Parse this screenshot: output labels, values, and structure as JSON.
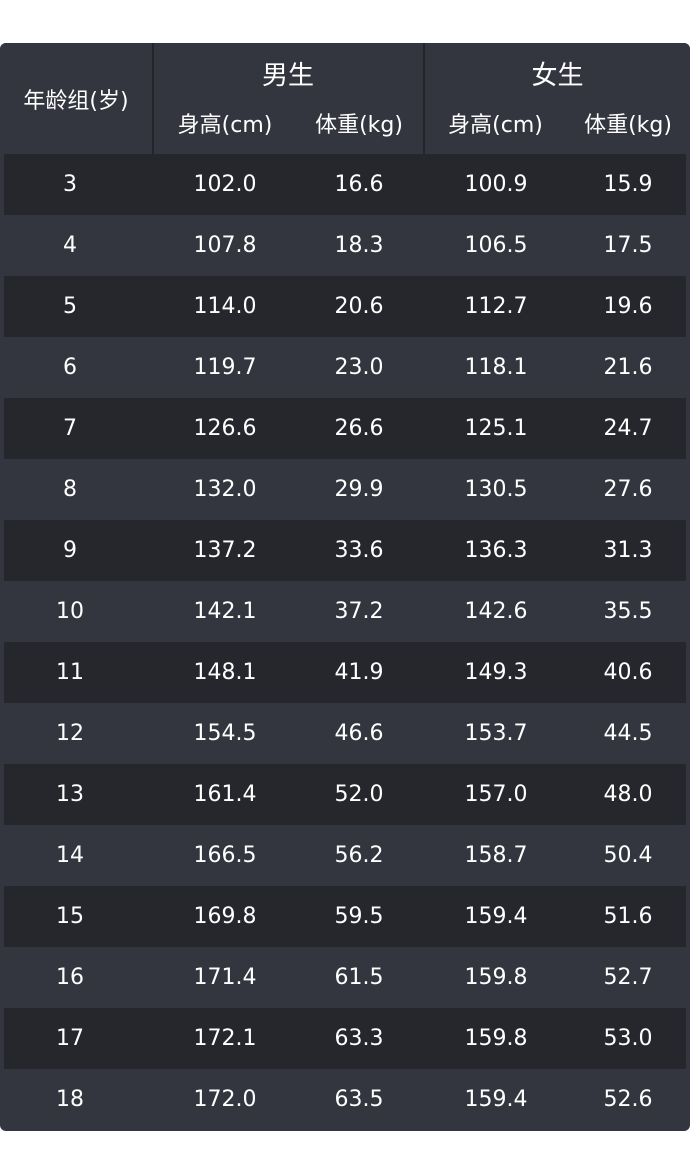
{
  "table": {
    "age_header": "年龄组(岁)",
    "groups": [
      {
        "label": "男生",
        "height_label": "身高(cm)",
        "weight_label": "体重(kg)"
      },
      {
        "label": "女生",
        "height_label": "身高(cm)",
        "weight_label": "体重(kg)"
      }
    ],
    "rows": [
      {
        "age": "3",
        "boy_height": "102.0",
        "boy_weight": "16.6",
        "girl_height": "100.9",
        "girl_weight": "15.9"
      },
      {
        "age": "4",
        "boy_height": "107.8",
        "boy_weight": "18.3",
        "girl_height": "106.5",
        "girl_weight": "17.5"
      },
      {
        "age": "5",
        "boy_height": "114.0",
        "boy_weight": "20.6",
        "girl_height": "112.7",
        "girl_weight": "19.6"
      },
      {
        "age": "6",
        "boy_height": "119.7",
        "boy_weight": "23.0",
        "girl_height": "118.1",
        "girl_weight": "21.6"
      },
      {
        "age": "7",
        "boy_height": "126.6",
        "boy_weight": "26.6",
        "girl_height": "125.1",
        "girl_weight": "24.7"
      },
      {
        "age": "8",
        "boy_height": "132.0",
        "boy_weight": "29.9",
        "girl_height": "130.5",
        "girl_weight": "27.6"
      },
      {
        "age": "9",
        "boy_height": "137.2",
        "boy_weight": "33.6",
        "girl_height": "136.3",
        "girl_weight": "31.3"
      },
      {
        "age": "10",
        "boy_height": "142.1",
        "boy_weight": "37.2",
        "girl_height": "142.6",
        "girl_weight": "35.5"
      },
      {
        "age": "11",
        "boy_height": "148.1",
        "boy_weight": "41.9",
        "girl_height": "149.3",
        "girl_weight": "40.6"
      },
      {
        "age": "12",
        "boy_height": "154.5",
        "boy_weight": "46.6",
        "girl_height": "153.7",
        "girl_weight": "44.5"
      },
      {
        "age": "13",
        "boy_height": "161.4",
        "boy_weight": "52.0",
        "girl_height": "157.0",
        "girl_weight": "48.0"
      },
      {
        "age": "14",
        "boy_height": "166.5",
        "boy_weight": "56.2",
        "girl_height": "158.7",
        "girl_weight": "50.4"
      },
      {
        "age": "15",
        "boy_height": "169.8",
        "boy_weight": "59.5",
        "girl_height": "159.4",
        "girl_weight": "51.6"
      },
      {
        "age": "16",
        "boy_height": "171.4",
        "boy_weight": "61.5",
        "girl_height": "159.8",
        "girl_weight": "52.7"
      },
      {
        "age": "17",
        "boy_height": "172.1",
        "boy_weight": "63.3",
        "girl_height": "159.8",
        "girl_weight": "53.0"
      },
      {
        "age": "18",
        "boy_height": "172.0",
        "boy_weight": "63.5",
        "girl_height": "159.4",
        "girl_weight": "52.6"
      }
    ]
  },
  "colors": {
    "header_bg": "#34363f",
    "row_dark": "#26272d",
    "row_light": "#34363f",
    "text": "#ffffff"
  }
}
